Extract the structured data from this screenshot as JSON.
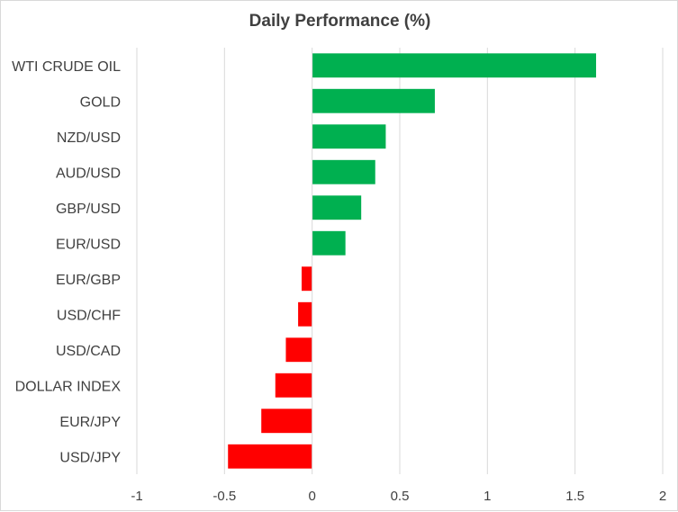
{
  "chart_data": {
    "type": "bar",
    "orientation": "horizontal",
    "title": "Daily Performance (%)",
    "xlabel": "",
    "ylabel": "",
    "categories": [
      "WTI CRUDE OIL",
      "GOLD",
      "NZD/USD",
      "AUD/USD",
      "GBP/USD",
      "EUR/USD",
      "EUR/GBP",
      "USD/CHF",
      "USD/CAD",
      "DOLLAR INDEX",
      "EUR/JPY",
      "USD/JPY"
    ],
    "values": [
      1.62,
      0.7,
      0.42,
      0.36,
      0.28,
      0.19,
      -0.06,
      -0.08,
      -0.15,
      -0.21,
      -0.29,
      -0.48
    ],
    "xlim": [
      -1,
      2
    ],
    "xticks": [
      "-1",
      "-0.5",
      "0",
      "0.5",
      "1",
      "1.5",
      "2"
    ],
    "grid": true,
    "legend": "none",
    "colors": {
      "positive": "#00b050",
      "negative": "#ff0000",
      "grid": "#d9d9d9",
      "text": "#404040"
    }
  }
}
